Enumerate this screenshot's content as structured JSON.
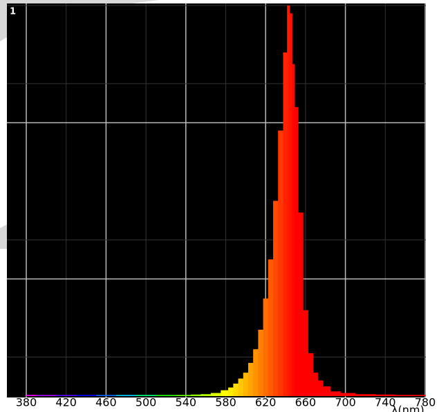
{
  "chart_data": {
    "type": "spectrum",
    "y_axis_label": "1",
    "x_label": "λ(nm)",
    "x": [
      380,
      400,
      420,
      440,
      460,
      480,
      500,
      520,
      540,
      550,
      560,
      570,
      580,
      585,
      590,
      595,
      600,
      605,
      610,
      615,
      620,
      625,
      630,
      635,
      640,
      643,
      645,
      648,
      650,
      655,
      660,
      665,
      670,
      675,
      680,
      690,
      700,
      720,
      740,
      760,
      780
    ],
    "values": [
      0.003,
      0.003,
      0.003,
      0.003,
      0.003,
      0.003,
      0.003,
      0.003,
      0.003,
      0.004,
      0.005,
      0.008,
      0.015,
      0.022,
      0.032,
      0.045,
      0.06,
      0.085,
      0.12,
      0.17,
      0.25,
      0.35,
      0.5,
      0.68,
      0.88,
      1.0,
      0.98,
      0.85,
      0.74,
      0.47,
      0.22,
      0.11,
      0.06,
      0.04,
      0.025,
      0.012,
      0.008,
      0.005,
      0.004,
      0.003,
      0.003
    ],
    "xlim": [
      380,
      780
    ],
    "ylim": [
      0,
      1
    ],
    "xticks": [
      380,
      420,
      460,
      500,
      540,
      580,
      620,
      660,
      700,
      740,
      780
    ],
    "y_grid": [
      0.1,
      0.3,
      0.4,
      0.7,
      0.8
    ]
  }
}
